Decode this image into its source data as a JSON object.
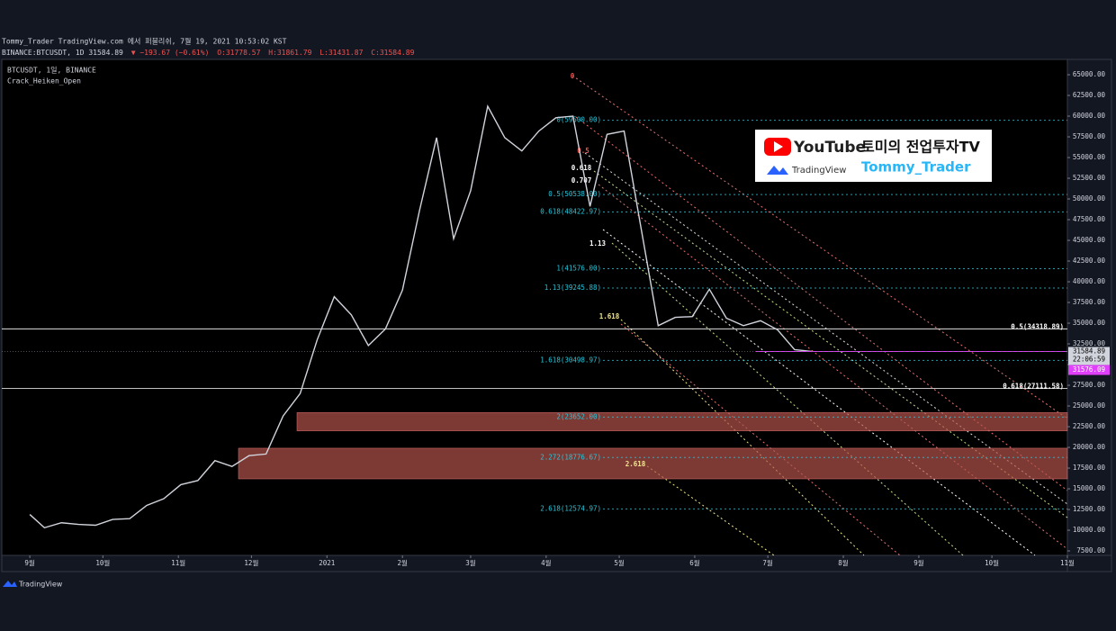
{
  "header": {
    "published": "Tommy_Trader TradingView.com 에서 퍼블리쉬, 7월 19, 2021 10:53:02 KST",
    "symbol": "BINANCE:BTCUSDT, 1D 31584.89",
    "change": "▼ −193.67 (−0.61%)",
    "ohlc": [
      "O:31778.57",
      "H:31861.79",
      "L:31431.87",
      "C:31584.89"
    ]
  },
  "branding": {
    "youtube": "YouTube",
    "channel": "토미의 전업투자TV",
    "tradingview": "TradingView",
    "handle": "Tommy_Trader",
    "footer": "TradingView"
  },
  "chart_data": {
    "type": "line",
    "legend": [
      "BTCUSDT, 1일, BINANCE",
      "Crack_Heiken_Open"
    ],
    "x": [
      0,
      6,
      13,
      20,
      27,
      34,
      41,
      48,
      55,
      62,
      69,
      76,
      83,
      90,
      97,
      104,
      111,
      118,
      125,
      132,
      139,
      146,
      153,
      160,
      167,
      174,
      181,
      188,
      195,
      202,
      209,
      216,
      223,
      230,
      237,
      244,
      251,
      258,
      265,
      272,
      279,
      286,
      293,
      300,
      307,
      314,
      321
    ],
    "series": [
      {
        "name": "BTCUSDT",
        "color": "#d1d4dc",
        "values": [
          11900,
          10300,
          10900,
          10700,
          10600,
          11300,
          11400,
          13000,
          13800,
          15500,
          16000,
          18400,
          17700,
          19000,
          19200,
          23800,
          26500,
          33000,
          38200,
          36000,
          32300,
          34300,
          39000,
          48600,
          57400,
          45200,
          51000,
          61200,
          57400,
          55800,
          58200,
          59800,
          60000,
          49100,
          57800,
          58200,
          46400,
          34700,
          35700,
          35800,
          39100,
          35600,
          34700,
          35300,
          34200,
          31800,
          31585
        ]
      }
    ],
    "xlim": [
      -11.5,
      426
    ],
    "xticks": [
      {
        "value": 0,
        "label": "9월"
      },
      {
        "value": 30,
        "label": "10월"
      },
      {
        "value": 61,
        "label": "11월"
      },
      {
        "value": 91,
        "label": "12월"
      },
      {
        "value": 122,
        "label": "2021"
      },
      {
        "value": 153,
        "label": "2월"
      },
      {
        "value": 181,
        "label": "3월"
      },
      {
        "value": 212,
        "label": "4월"
      },
      {
        "value": 242,
        "label": "5월"
      },
      {
        "value": 273,
        "label": "6월"
      },
      {
        "value": 303,
        "label": "7월"
      },
      {
        "value": 334,
        "label": "8월"
      },
      {
        "value": 365,
        "label": "9월"
      },
      {
        "value": 395,
        "label": "10월"
      },
      {
        "value": 426,
        "label": "11월"
      }
    ],
    "ylim": [
      6960,
      66850
    ],
    "yticks": [
      {
        "value": 65000,
        "label": "65000.00"
      },
      {
        "value": 62500,
        "label": "62500.00"
      },
      {
        "value": 60000,
        "label": "60000.00"
      },
      {
        "value": 57500,
        "label": "57500.00"
      },
      {
        "value": 55000,
        "label": "55000.00"
      },
      {
        "value": 52500,
        "label": "52500.00"
      },
      {
        "value": 50000,
        "label": "50000.00"
      },
      {
        "value": 47500,
        "label": "47500.00"
      },
      {
        "value": 45000,
        "label": "45000.00"
      },
      {
        "value": 42500,
        "label": "42500.00"
      },
      {
        "value": 40000,
        "label": "40000.00"
      },
      {
        "value": 37500,
        "label": "37500.00"
      },
      {
        "value": 35000,
        "label": "35000.00"
      },
      {
        "value": 32500,
        "label": "32500.00"
      },
      {
        "value": 30000,
        "label": "30000.00"
      },
      {
        "value": 27500,
        "label": "27500.00"
      },
      {
        "value": 25000,
        "label": "25000.00"
      },
      {
        "value": 22500,
        "label": "22500.00"
      },
      {
        "value": 20000,
        "label": "20000.00"
      },
      {
        "value": 17500,
        "label": "17500.00"
      },
      {
        "value": 15000,
        "label": "15000.00"
      },
      {
        "value": 12500,
        "label": "12500.00"
      },
      {
        "value": 10000,
        "label": "10000.00"
      },
      {
        "value": 7500,
        "label": "7500.00"
      }
    ],
    "fib_levels": {
      "color": "#26c6da",
      "levels": [
        {
          "value": 59500,
          "label": "0(59500.00)"
        },
        {
          "value": 50538,
          "label": "0.5(50538.00)"
        },
        {
          "value": 48422.97,
          "label": "0.618(48422.97)"
        },
        {
          "value": 41576,
          "label": "1(41576.00)"
        },
        {
          "value": 39245.88,
          "label": "1.13(39245.88)"
        },
        {
          "value": 30498.97,
          "label": "1.618(30498.97)"
        },
        {
          "value": 23652,
          "label": "2(23652.00)"
        },
        {
          "value": 18776.67,
          "label": "2.272(18776.67)"
        },
        {
          "value": 12574.97,
          "label": "2.618(12574.97)"
        }
      ]
    },
    "hlines": {
      "color": "#ffffff",
      "levels": [
        {
          "value": 34318.89,
          "label": "0.5(34318.89)"
        },
        {
          "value": 27111.58,
          "label": "0.618(27111.58)"
        }
      ]
    },
    "zones": {
      "color": "#b2534b",
      "ranges": [
        {
          "from": 22000,
          "to": 24200
        },
        {
          "from": 16200,
          "to": 19900
        }
      ]
    },
    "fan_labels": [
      "0",
      "0.5",
      "0.618",
      "0.707",
      "1.13",
      "1.618",
      "2.618"
    ],
    "last_price": 31584.89,
    "countdown": "22:06:59",
    "alert_price": 31576.09,
    "alert_color": "#e040fb"
  }
}
